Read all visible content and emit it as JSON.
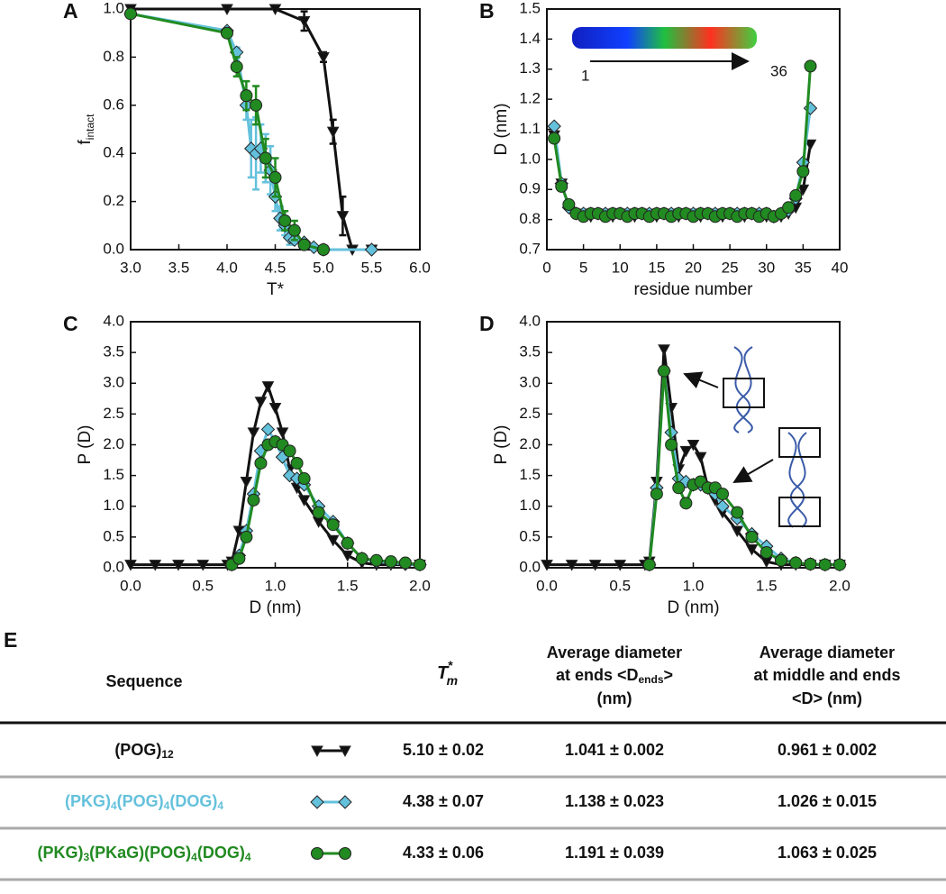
{
  "chart_data": [
    {
      "type": "line",
      "panel": "A",
      "xlabel": "T*",
      "ylabel": {
        "text": "f",
        "sub": "intact"
      },
      "xlim": [
        3,
        6
      ],
      "xticks": [
        {
          "value": 3,
          "label": "3.0"
        },
        3.5,
        {
          "value": 4,
          "label": "4.0"
        },
        4.5,
        {
          "value": 5,
          "label": "5.0"
        },
        5.5,
        {
          "value": 6,
          "label": "6.0"
        }
      ],
      "ylim": [
        0,
        1
      ],
      "yticks": [
        {
          "value": 0,
          "label": "0.0"
        },
        0.2,
        0.4,
        0.6,
        0.8,
        {
          "value": 1,
          "label": "1.0"
        }
      ],
      "series": [
        {
          "color": "#111111",
          "marker": "triangle",
          "x": [
            3,
            4,
            4.5,
            4.8,
            5,
            5.1,
            5.2,
            5.3,
            5.5
          ],
          "values": [
            1,
            1,
            1,
            0.95,
            0.8,
            0.49,
            0.14,
            0,
            0
          ],
          "errors": [
            null,
            null,
            null,
            0.04,
            0.02,
            0.05,
            0.08,
            null,
            null
          ]
        },
        {
          "color": "#64c1dc",
          "marker": "diamond",
          "x": [
            3,
            4,
            4.1,
            4.2,
            4.25,
            4.3,
            4.35,
            4.4,
            4.45,
            4.5,
            4.55,
            4.6,
            4.65,
            4.7,
            4.8,
            4.9,
            5,
            5.5
          ],
          "values": [
            0.98,
            0.91,
            0.82,
            0.6,
            0.42,
            0.4,
            0.42,
            0.38,
            0.33,
            0.22,
            0.13,
            0.1,
            0.05,
            0.04,
            0.03,
            0.01,
            0,
            0
          ],
          "errors": [
            null,
            null,
            0.02,
            0.06,
            0.12,
            0.15,
            0.1,
            0.1,
            0.1,
            0.06,
            0.05,
            0.04,
            0.03,
            null,
            null,
            null,
            null,
            null
          ]
        },
        {
          "color": "#218a21",
          "marker": "circle",
          "x": [
            3,
            4,
            4.1,
            4.2,
            4.3,
            4.4,
            4.5,
            4.6,
            4.7,
            4.8,
            5
          ],
          "values": [
            0.98,
            0.9,
            0.76,
            0.64,
            0.6,
            0.38,
            0.3,
            0.12,
            0.08,
            0.02,
            0
          ],
          "errors": [
            null,
            null,
            0.04,
            0.06,
            0.08,
            0.08,
            0.08,
            0.04,
            0.04,
            null,
            null
          ]
        }
      ]
    },
    {
      "type": "line",
      "panel": "B",
      "xlabel": "residue number",
      "ylabel": "D (nm)",
      "annotations": [
        "1",
        "36"
      ],
      "xlim": [
        0,
        40
      ],
      "xticks": [
        0,
        5,
        10,
        15,
        20,
        25,
        30,
        35,
        40
      ],
      "ylim": [
        0.7,
        1.5
      ],
      "yticks": [
        0.7,
        0.8,
        0.9,
        {
          "value": 1,
          "label": "1.0"
        },
        1.1,
        1.2,
        1.3,
        1.4,
        1.5
      ],
      "x": [
        1,
        2,
        3,
        4,
        5,
        6,
        7,
        8,
        9,
        10,
        11,
        12,
        13,
        14,
        15,
        16,
        17,
        18,
        19,
        20,
        21,
        22,
        23,
        24,
        25,
        26,
        27,
        28,
        29,
        30,
        31,
        32,
        33,
        34,
        35,
        36
      ],
      "series": [
        {
          "color": "#111111",
          "marker": "triangle",
          "values": [
            1.08,
            0.92,
            0.84,
            0.82,
            0.82,
            0.81,
            0.82,
            0.82,
            0.81,
            0.82,
            0.82,
            0.81,
            0.82,
            0.82,
            0.81,
            0.82,
            0.82,
            0.81,
            0.82,
            0.82,
            0.81,
            0.82,
            0.82,
            0.81,
            0.82,
            0.82,
            0.81,
            0.82,
            0.82,
            0.81,
            0.81,
            0.81,
            0.82,
            0.84,
            0.9,
            1.05
          ]
        },
        {
          "color": "#64c1dc",
          "marker": "diamond",
          "values": [
            1.11,
            0.92,
            0.84,
            0.82,
            0.82,
            0.82,
            0.82,
            0.82,
            0.82,
            0.82,
            0.82,
            0.82,
            0.82,
            0.82,
            0.82,
            0.82,
            0.82,
            0.82,
            0.82,
            0.82,
            0.82,
            0.82,
            0.82,
            0.82,
            0.82,
            0.82,
            0.82,
            0.82,
            0.82,
            0.82,
            0.81,
            0.82,
            0.83,
            0.87,
            0.99,
            1.17
          ]
        },
        {
          "color": "#218a21",
          "marker": "circle",
          "values": [
            1.07,
            0.91,
            0.85,
            0.82,
            0.81,
            0.82,
            0.82,
            0.81,
            0.82,
            0.82,
            0.81,
            0.82,
            0.82,
            0.81,
            0.82,
            0.82,
            0.81,
            0.82,
            0.82,
            0.81,
            0.82,
            0.82,
            0.81,
            0.82,
            0.82,
            0.81,
            0.82,
            0.82,
            0.81,
            0.82,
            0.81,
            0.82,
            0.84,
            0.88,
            0.96,
            1.31
          ]
        }
      ]
    },
    {
      "type": "line",
      "panel": "C",
      "xlabel": "D (nm)",
      "ylabel": "P (D)",
      "xlim": [
        0,
        2
      ],
      "xticks": [
        {
          "value": 0,
          "label": "0.0"
        },
        0.5,
        {
          "value": 1,
          "label": "1.0"
        },
        1.5,
        {
          "value": 2,
          "label": "2.0"
        }
      ],
      "ylim": [
        0,
        4
      ],
      "yticks": [
        {
          "value": 0,
          "label": "0.0"
        },
        0.5,
        {
          "value": 1,
          "label": "1.0"
        },
        1.5,
        {
          "value": 2,
          "label": "2.0"
        },
        2.5,
        {
          "value": 3,
          "label": "3.0"
        },
        3.5,
        {
          "value": 4,
          "label": "4.0"
        }
      ],
      "x": [
        0,
        0.17,
        0.33,
        0.5,
        0.67,
        0.7,
        0.75,
        0.8,
        0.85,
        0.9,
        0.95,
        1,
        1.05,
        1.1,
        1.15,
        1.2,
        1.3,
        1.4,
        1.5,
        1.6,
        1.7,
        1.8,
        1.9,
        2
      ],
      "series": [
        {
          "color": "#111111",
          "marker": "triangle",
          "values": [
            0.05,
            0.05,
            0.05,
            0.05,
            0.05,
            0.1,
            0.6,
            1.4,
            2.2,
            2.7,
            2.95,
            2.6,
            2.2,
            1.6,
            1.3,
            1.1,
            0.75,
            0.45,
            0.2,
            0.08,
            0.05,
            0.05,
            0.05,
            0.05
          ]
        },
        {
          "color": "#64c1dc",
          "marker": "diamond",
          "values": [
            null,
            null,
            null,
            null,
            null,
            0.05,
            0.2,
            0.6,
            1.2,
            1.9,
            2.25,
            2.05,
            1.8,
            1.5,
            1.45,
            1.35,
            1,
            0.75,
            0.4,
            0.15,
            0.1,
            0.08,
            0.06,
            0.05
          ]
        },
        {
          "color": "#218a21",
          "marker": "circle",
          "values": [
            null,
            null,
            null,
            null,
            null,
            0.05,
            0.15,
            0.5,
            1.1,
            1.7,
            2,
            2.05,
            2,
            1.9,
            1.7,
            1.45,
            0.9,
            0.7,
            0.4,
            0.15,
            0.12,
            0.1,
            0.08,
            0.05
          ]
        }
      ]
    },
    {
      "type": "line",
      "panel": "D",
      "xlabel": "D (nm)",
      "ylabel": "P (D)",
      "xlim": [
        0,
        2
      ],
      "xticks": [
        {
          "value": 0,
          "label": "0.0"
        },
        0.5,
        {
          "value": 1,
          "label": "1.0"
        },
        1.5,
        {
          "value": 2,
          "label": "2.0"
        }
      ],
      "ylim": [
        0,
        4
      ],
      "yticks": [
        {
          "value": 0,
          "label": "0.0"
        },
        0.5,
        {
          "value": 1,
          "label": "1.0"
        },
        1.5,
        {
          "value": 2,
          "label": "2.0"
        },
        2.5,
        {
          "value": 3,
          "label": "3.0"
        },
        3.5,
        {
          "value": 4,
          "label": "4.0"
        }
      ],
      "x": [
        0,
        0.17,
        0.33,
        0.5,
        0.67,
        0.7,
        0.75,
        0.8,
        0.85,
        0.9,
        0.95,
        1,
        1.05,
        1.1,
        1.15,
        1.2,
        1.3,
        1.4,
        1.5,
        1.6,
        1.7,
        1.8,
        1.9,
        2
      ],
      "series": [
        {
          "color": "#111111",
          "marker": "triangle",
          "values": [
            0.05,
            0.05,
            0.05,
            0.05,
            0.05,
            0.1,
            1.4,
            3.55,
            2.6,
            1.6,
            1.9,
            2,
            1.8,
            1.3,
            1.1,
            0.9,
            0.6,
            0.3,
            0.1,
            0.05,
            0.05,
            0.05,
            0.05,
            0.05
          ]
        },
        {
          "color": "#64c1dc",
          "marker": "diamond",
          "values": [
            null,
            null,
            null,
            null,
            null,
            0.05,
            1.3,
            3.2,
            2.2,
            1.45,
            1.4,
            1.35,
            1.35,
            1.3,
            1.2,
            1,
            0.8,
            0.55,
            0.35,
            0.15,
            0.08,
            0.06,
            0.05,
            0.05
          ]
        },
        {
          "color": "#218a21",
          "marker": "circle",
          "values": [
            null,
            null,
            null,
            null,
            null,
            0.05,
            1.2,
            3.2,
            2,
            1.3,
            1.05,
            1.35,
            1.4,
            1.3,
            1.3,
            1.2,
            0.9,
            0.5,
            0.25,
            0.12,
            0.08,
            0.06,
            0.05,
            0.05
          ]
        }
      ]
    }
  ],
  "table": {
    "panel": "E",
    "headers": {
      "sequence": "Sequence",
      "tm": {
        "text": "T",
        "sup": "*",
        "sub": "m"
      },
      "ends": {
        "line1": "Average diameter",
        "line2": "at ends <D",
        "line2_sub": "ends",
        "line2_end": ">",
        "line3": "(nm)"
      },
      "middle": {
        "line1": "Average diameter",
        "line2": "at middle and ends",
        "line3": "<D>  (nm)"
      }
    },
    "rows": [
      {
        "sequence": [
          {
            "text": "(POG)",
            "sub": "12"
          }
        ],
        "color": "#111111",
        "marker": "triangle",
        "tm": "5.10 ± 0.02",
        "ends": "1.041 ± 0.002",
        "middle": "0.961 ± 0.002"
      },
      {
        "sequence": [
          {
            "text": "(PKG)",
            "sub": "4"
          },
          {
            "text": "(POG)",
            "sub": "4"
          },
          {
            "text": "(DOG)",
            "sub": "4"
          }
        ],
        "color": "#64c1dc",
        "marker": "diamond",
        "tm": "4.38 ± 0.07",
        "ends": "1.138 ± 0.023",
        "middle": "1.026 ± 0.015"
      },
      {
        "sequence": [
          {
            "text": "(PKG)",
            "sub": "3"
          },
          {
            "text": "(PKaG)"
          },
          {
            "text": "(POG)",
            "sub": "4"
          },
          {
            "text": "(DOG)",
            "sub": "4"
          }
        ],
        "color": "#218a21",
        "marker": "circle",
        "tm": "4.33 ± 0.06",
        "ends": "1.191 ± 0.039",
        "middle": "1.063 ± 0.025"
      }
    ]
  }
}
